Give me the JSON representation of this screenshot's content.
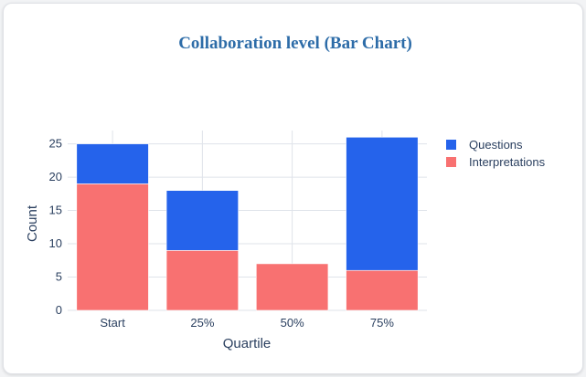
{
  "chart_data": {
    "type": "bar",
    "barmode": "stack",
    "title": "Collaboration level (Bar Chart)",
    "xlabel": "Quartile",
    "ylabel": "Count",
    "categories": [
      "Start",
      "25%",
      "50%",
      "75%"
    ],
    "ylim": [
      0,
      27
    ],
    "yticks": [
      0,
      5,
      10,
      15,
      20,
      25
    ],
    "grid": true,
    "legend_position": "top-right",
    "series": [
      {
        "name": "Interpretations",
        "values": [
          19,
          9,
          7,
          6
        ],
        "color": "#f87171"
      },
      {
        "name": "Questions",
        "values": [
          6,
          9,
          0,
          20
        ],
        "color": "#2563eb"
      }
    ],
    "legend_order": [
      "Questions",
      "Interpretations"
    ],
    "title_color": "#2d6ca8"
  }
}
